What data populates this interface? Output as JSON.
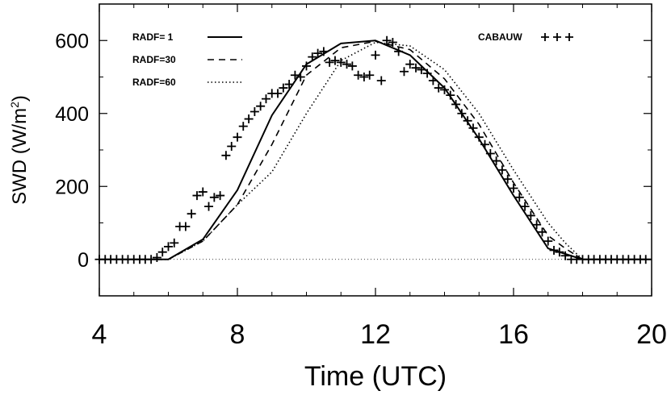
{
  "chart_data": {
    "type": "line",
    "title": "",
    "xlabel": "Time (UTC)",
    "ylabel": "SWD (W/m²)",
    "ylabel_parts": {
      "main": "SWD (W/m",
      "sup": "2",
      "close": ")"
    },
    "xlim": [
      4,
      20
    ],
    "ylim": [
      -100,
      700
    ],
    "x_ticks": [
      4,
      8,
      12,
      16,
      20
    ],
    "y_ticks": [
      0,
      200,
      400,
      600
    ],
    "x_tick_labels": [
      "4",
      "8",
      "12",
      "16",
      "20"
    ],
    "y_tick_labels": [
      "0",
      "200",
      "400",
      "600"
    ],
    "zero_line": true,
    "grid": false,
    "legend": {
      "placement_lines": "top-left",
      "placement_obs": "top-right",
      "entries": [
        {
          "label": "RADF= 1",
          "style": "solid"
        },
        {
          "label": "RADF=30",
          "style": "dashed"
        },
        {
          "label": "RADF=60",
          "style": "dotted"
        },
        {
          "label": "CABAUW",
          "style": "plus"
        }
      ]
    },
    "series": [
      {
        "name": "RADF= 1",
        "style": "solid",
        "points": [
          [
            4,
            0
          ],
          [
            5,
            0
          ],
          [
            6,
            0
          ],
          [
            7,
            55
          ],
          [
            8,
            190
          ],
          [
            9,
            395
          ],
          [
            10,
            535
          ],
          [
            11,
            592
          ],
          [
            12,
            600
          ],
          [
            13,
            560
          ],
          [
            14,
            470
          ],
          [
            15,
            330
          ],
          [
            16,
            175
          ],
          [
            17,
            30
          ],
          [
            17.5,
            15
          ],
          [
            18,
            0
          ],
          [
            19,
            0
          ],
          [
            20,
            0
          ]
        ]
      },
      {
        "name": "RADF=30",
        "style": "dashed",
        "points": [
          [
            4,
            0
          ],
          [
            5,
            0
          ],
          [
            6,
            0
          ],
          [
            7,
            50
          ],
          [
            8,
            150
          ],
          [
            9,
            315
          ],
          [
            10,
            505
          ],
          [
            11,
            580
          ],
          [
            12,
            598
          ],
          [
            13,
            575
          ],
          [
            14,
            495
          ],
          [
            15,
            370
          ],
          [
            16,
            210
          ],
          [
            17,
            65
          ],
          [
            17.5,
            30
          ],
          [
            18,
            0
          ],
          [
            19,
            0
          ],
          [
            20,
            0
          ]
        ]
      },
      {
        "name": "RADF=60",
        "style": "dotted",
        "points": [
          [
            4,
            0
          ],
          [
            5,
            0
          ],
          [
            6,
            0
          ],
          [
            7,
            50
          ],
          [
            8,
            150
          ],
          [
            9,
            240
          ],
          [
            10,
            400
          ],
          [
            11,
            545
          ],
          [
            12,
            595
          ],
          [
            13,
            585
          ],
          [
            14,
            520
          ],
          [
            15,
            400
          ],
          [
            16,
            245
          ],
          [
            17,
            100
          ],
          [
            17.5,
            45
          ],
          [
            18,
            0
          ],
          [
            19,
            0
          ],
          [
            20,
            0
          ]
        ]
      },
      {
        "name": "CABAUW",
        "style": "plus",
        "points": [
          [
            4,
            0
          ],
          [
            4.17,
            0
          ],
          [
            4.33,
            0
          ],
          [
            4.5,
            0
          ],
          [
            4.67,
            0
          ],
          [
            4.83,
            0
          ],
          [
            5,
            0
          ],
          [
            5.17,
            0
          ],
          [
            5.33,
            0
          ],
          [
            5.5,
            0
          ],
          [
            5.67,
            5
          ],
          [
            5.83,
            20
          ],
          [
            6,
            35
          ],
          [
            6.17,
            45
          ],
          [
            6.33,
            90
          ],
          [
            6.5,
            90
          ],
          [
            6.67,
            125
          ],
          [
            6.83,
            175
          ],
          [
            7,
            185
          ],
          [
            7.17,
            145
          ],
          [
            7.33,
            170
          ],
          [
            7.5,
            175
          ],
          [
            7.67,
            285
          ],
          [
            7.83,
            310
          ],
          [
            8,
            335
          ],
          [
            8.17,
            365
          ],
          [
            8.33,
            385
          ],
          [
            8.5,
            405
          ],
          [
            8.67,
            420
          ],
          [
            8.83,
            440
          ],
          [
            9,
            455
          ],
          [
            9.17,
            455
          ],
          [
            9.33,
            470
          ],
          [
            9.5,
            480
          ],
          [
            9.67,
            505
          ],
          [
            9.83,
            500
          ],
          [
            10,
            530
          ],
          [
            10.17,
            555
          ],
          [
            10.33,
            565
          ],
          [
            10.5,
            570
          ],
          [
            10.67,
            540
          ],
          [
            10.83,
            545
          ],
          [
            11,
            540
          ],
          [
            11.17,
            535
          ],
          [
            11.33,
            530
          ],
          [
            11.5,
            505
          ],
          [
            11.67,
            500
          ],
          [
            11.83,
            505
          ],
          [
            12,
            560
          ],
          [
            12.17,
            490
          ],
          [
            12.33,
            600
          ],
          [
            12.5,
            595
          ],
          [
            12.67,
            570
          ],
          [
            12.83,
            515
          ],
          [
            13,
            535
          ],
          [
            13.17,
            525
          ],
          [
            13.33,
            520
          ],
          [
            13.5,
            510
          ],
          [
            13.67,
            490
          ],
          [
            13.83,
            470
          ],
          [
            14,
            465
          ],
          [
            14.17,
            450
          ],
          [
            14.33,
            425
          ],
          [
            14.5,
            400
          ],
          [
            14.67,
            380
          ],
          [
            14.83,
            360
          ],
          [
            15,
            335
          ],
          [
            15.17,
            315
          ],
          [
            15.33,
            290
          ],
          [
            15.5,
            270
          ],
          [
            15.67,
            245
          ],
          [
            15.83,
            220
          ],
          [
            16,
            195
          ],
          [
            16.17,
            170
          ],
          [
            16.33,
            145
          ],
          [
            16.5,
            120
          ],
          [
            16.67,
            95
          ],
          [
            16.83,
            75
          ],
          [
            17,
            50
          ],
          [
            17.17,
            25
          ],
          [
            17.33,
            20
          ],
          [
            17.5,
            10
          ],
          [
            17.67,
            0
          ],
          [
            17.83,
            0
          ],
          [
            18,
            0
          ],
          [
            18.17,
            0
          ],
          [
            18.33,
            0
          ],
          [
            18.5,
            0
          ],
          [
            18.67,
            0
          ],
          [
            18.83,
            0
          ],
          [
            19,
            0
          ],
          [
            19.17,
            0
          ],
          [
            19.33,
            0
          ],
          [
            19.5,
            0
          ],
          [
            19.67,
            0
          ],
          [
            19.83,
            0
          ]
        ]
      }
    ]
  }
}
